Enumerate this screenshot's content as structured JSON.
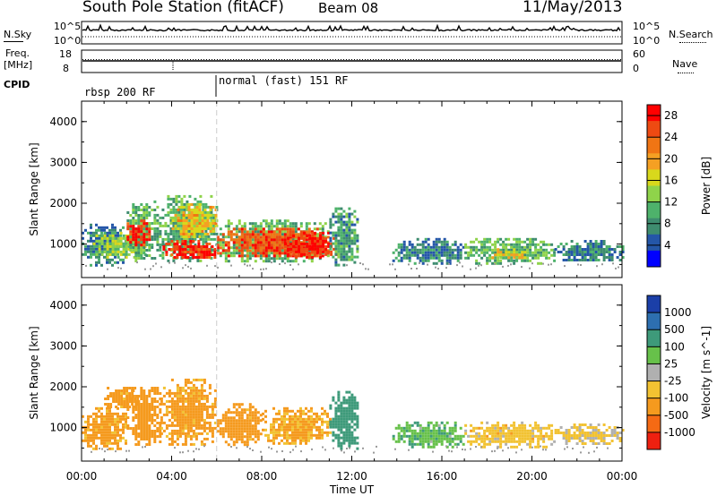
{
  "header": {
    "station": "South Pole Station (fitACF)",
    "beam": "Beam 08",
    "date": "11/May/2013"
  },
  "top_panels": {
    "nsky_label": "N.Sky",
    "nsky_left_ticks": [
      "10^5",
      "10^0"
    ],
    "nsky_right_ticks": [
      "10^5",
      "10^0"
    ],
    "nsearch_label": "N.Search",
    "freq_label_line1": "Freq.",
    "freq_label_line2": "[MHz]",
    "freq_ticks": [
      "18",
      "8"
    ],
    "nave_ticks": [
      "60",
      "0"
    ],
    "nave_label": "Nave",
    "cpid_label": "CPID",
    "cpid_segments": [
      {
        "start_hour": 0,
        "label": "rbsp 200 RF"
      },
      {
        "start_hour": 6,
        "label": "normal (fast) 151 RF"
      }
    ]
  },
  "colors": {
    "power_scale": [
      "#0000ff",
      "#2456a8",
      "#3e8c6f",
      "#4eb26b",
      "#8fd34a",
      "#d8d81c",
      "#f5a023",
      "#f07514",
      "#ee4a12",
      "#ff0000"
    ],
    "velocity_scale": [
      "#1b3fa8",
      "#2d6fb0",
      "#3e9a7a",
      "#67c14a",
      "#b0b0b0",
      "#f2c232",
      "#f59a1e",
      "#f56a14",
      "#ee2010"
    ]
  },
  "chart_data": [
    {
      "type": "heatmap",
      "title": "Power",
      "xlabel": "Time UT",
      "ylabel": "Slant Range [km]",
      "x_ticks": [
        "00:00",
        "04:00",
        "08:00",
        "12:00",
        "16:00",
        "20:00",
        "00:00"
      ],
      "y_ticks": [
        "1000",
        "2000",
        "3000",
        "4000"
      ],
      "xlim": [
        0,
        24
      ],
      "ylim": [
        180,
        4500
      ],
      "colorbar_label": "Power [dB]",
      "colorbar_ticks": [
        "4",
        "8",
        "12",
        "16",
        "20",
        "24",
        "28"
      ],
      "colorbar_range": [
        0,
        30
      ],
      "regions": [
        {
          "t0": 0.0,
          "t1": 2.0,
          "r0": 500,
          "r1": 1500,
          "value": 7
        },
        {
          "t0": 0.5,
          "t1": 2.8,
          "r0": 700,
          "r1": 1300,
          "value": 14
        },
        {
          "t0": 2.0,
          "t1": 3.2,
          "r0": 600,
          "r1": 2000,
          "value": 11
        },
        {
          "t0": 2.0,
          "t1": 3.0,
          "r0": 1000,
          "r1": 1600,
          "value": 27
        },
        {
          "t0": 3.2,
          "t1": 6.0,
          "r0": 600,
          "r1": 2200,
          "value": 10
        },
        {
          "t0": 3.6,
          "t1": 6.0,
          "r0": 650,
          "r1": 1100,
          "value": 27
        },
        {
          "t0": 4.0,
          "t1": 6.0,
          "r0": 1200,
          "r1": 2000,
          "value": 18
        },
        {
          "t0": 6.0,
          "t1": 11.0,
          "r0": 550,
          "r1": 1600,
          "value": 11
        },
        {
          "t0": 6.0,
          "t1": 11.0,
          "r0": 700,
          "r1": 1400,
          "value": 25
        },
        {
          "t0": 9.0,
          "t1": 11.3,
          "r0": 700,
          "r1": 1300,
          "value": 28
        },
        {
          "t0": 11.0,
          "t1": 12.3,
          "r0": 500,
          "r1": 1900,
          "value": 9
        },
        {
          "t0": 13.8,
          "t1": 17.0,
          "r0": 550,
          "r1": 1150,
          "value": 7
        },
        {
          "t0": 17.0,
          "t1": 21.0,
          "r0": 550,
          "r1": 1150,
          "value": 11
        },
        {
          "t0": 18.2,
          "t1": 19.8,
          "r0": 650,
          "r1": 900,
          "value": 17
        },
        {
          "t0": 21.0,
          "t1": 24.0,
          "r0": 600,
          "r1": 1100,
          "value": 7
        }
      ]
    },
    {
      "type": "heatmap",
      "title": "Velocity",
      "xlabel": "Time UT",
      "ylabel": "Slant Range [km]",
      "x_ticks": [
        "00:00",
        "04:00",
        "08:00",
        "12:00",
        "16:00",
        "20:00",
        "00:00"
      ],
      "y_ticks": [
        "1000",
        "2000",
        "3000",
        "4000"
      ],
      "xlim": [
        0,
        24
      ],
      "ylim": [
        180,
        4500
      ],
      "colorbar_label": "Velocity [m s^-1]",
      "colorbar_ticks": [
        "1000",
        "500",
        "100",
        "25",
        "-25",
        "-100",
        "-500",
        "-1000"
      ],
      "regions": [
        {
          "t0": 0.0,
          "t1": 2.0,
          "r0": 500,
          "r1": 1500,
          "value": -150
        },
        {
          "t0": 1.0,
          "t1": 2.5,
          "r0": 1500,
          "r1": 2000,
          "value": -200
        },
        {
          "t0": 2.0,
          "t1": 3.5,
          "r0": 600,
          "r1": 2000,
          "value": -250
        },
        {
          "t0": 3.5,
          "t1": 6.0,
          "r0": 600,
          "r1": 2200,
          "value": -150
        },
        {
          "t0": 6.0,
          "t1": 8.0,
          "r0": 550,
          "r1": 1600,
          "value": -200
        },
        {
          "t0": 8.0,
          "t1": 11.0,
          "r0": 600,
          "r1": 1500,
          "value": -120
        },
        {
          "t0": 11.0,
          "t1": 12.3,
          "r0": 500,
          "r1": 1900,
          "value": 300
        },
        {
          "t0": 13.8,
          "t1": 17.0,
          "r0": 550,
          "r1": 1150,
          "value": 80
        },
        {
          "t0": 17.0,
          "t1": 21.0,
          "r0": 550,
          "r1": 1150,
          "value": -60
        },
        {
          "t0": 21.0,
          "t1": 24.0,
          "r0": 600,
          "r1": 1100,
          "value": -40
        }
      ]
    }
  ]
}
